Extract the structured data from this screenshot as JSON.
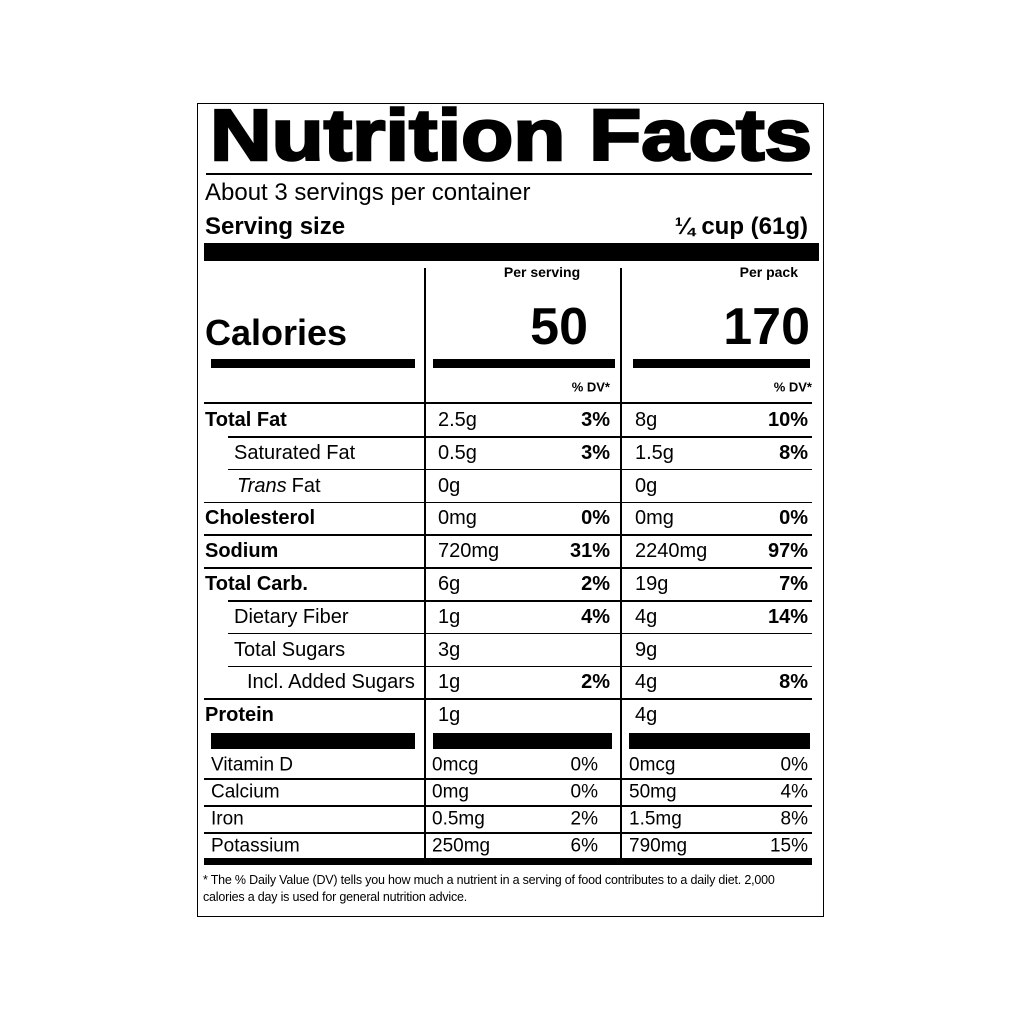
{
  "header": {
    "title": "Nutrition Facts",
    "servings": "About 3 servings per container",
    "serving_size_label": "Serving size",
    "serving_size": "¼ cup (61g)"
  },
  "calories": {
    "label": "Calories",
    "columns": [
      {
        "heading": "Per serving",
        "value": "50",
        "dv_heading": "% DV*"
      },
      {
        "heading": "Per pack",
        "value": "170",
        "dv_heading": "% DV*"
      }
    ]
  },
  "nutrients": [
    {
      "name": "Total Fat",
      "level": 0,
      "values": [
        [
          "2.5g",
          "3%"
        ],
        [
          "8g",
          "10%"
        ]
      ]
    },
    {
      "name": "Saturated Fat",
      "level": 1,
      "values": [
        [
          "0.5g",
          "3%"
        ],
        [
          "1.5g",
          "8%"
        ]
      ]
    },
    {
      "name_italic": "Trans",
      "name": "Fat",
      "level": 1,
      "values": [
        [
          "0g",
          null
        ],
        [
          "0g",
          null
        ]
      ]
    },
    {
      "name": "Cholesterol",
      "level": 0,
      "values": [
        [
          "0mg",
          "0%"
        ],
        [
          "0mg",
          "0%"
        ]
      ]
    },
    {
      "name": "Sodium",
      "level": 0,
      "values": [
        [
          "720mg",
          "31%"
        ],
        [
          "2240mg",
          "97%"
        ]
      ]
    },
    {
      "name": "Total Carb.",
      "level": 0,
      "values": [
        [
          "6g",
          "2%"
        ],
        [
          "19g",
          "7%"
        ]
      ]
    },
    {
      "name": "Dietary Fiber",
      "level": 1,
      "values": [
        [
          "1g",
          "4%"
        ],
        [
          "4g",
          "14%"
        ]
      ]
    },
    {
      "name": "Total Sugars",
      "level": 1,
      "values": [
        [
          "3g",
          null
        ],
        [
          "9g",
          null
        ]
      ]
    },
    {
      "name": "Incl. Added Sugars",
      "level": 2,
      "values": [
        [
          "1g",
          "2%"
        ],
        [
          "4g",
          "8%"
        ]
      ]
    },
    {
      "name": "Protein",
      "level": 0,
      "values": [
        [
          "1g",
          null
        ],
        [
          "4g",
          null
        ]
      ]
    }
  ],
  "vitamins": [
    {
      "name": "Vitamin D",
      "values": [
        [
          "0mcg",
          "0%"
        ],
        [
          "0mcg",
          "0%"
        ]
      ]
    },
    {
      "name": "Calcium",
      "values": [
        [
          "0mg",
          "0%"
        ],
        [
          "50mg",
          "4%"
        ]
      ]
    },
    {
      "name": "Iron",
      "values": [
        [
          "0.5mg",
          "2%"
        ],
        [
          "1.5mg",
          "8%"
        ]
      ]
    },
    {
      "name": "Potassium",
      "values": [
        [
          "250mg",
          "6%"
        ],
        [
          "790mg",
          "15%"
        ]
      ]
    }
  ],
  "footnote": "* The % Daily Value (DV) tells you how much a nutrient in a serving of food contributes to a daily diet. 2,000 calories a day is used for general nutrition advice."
}
